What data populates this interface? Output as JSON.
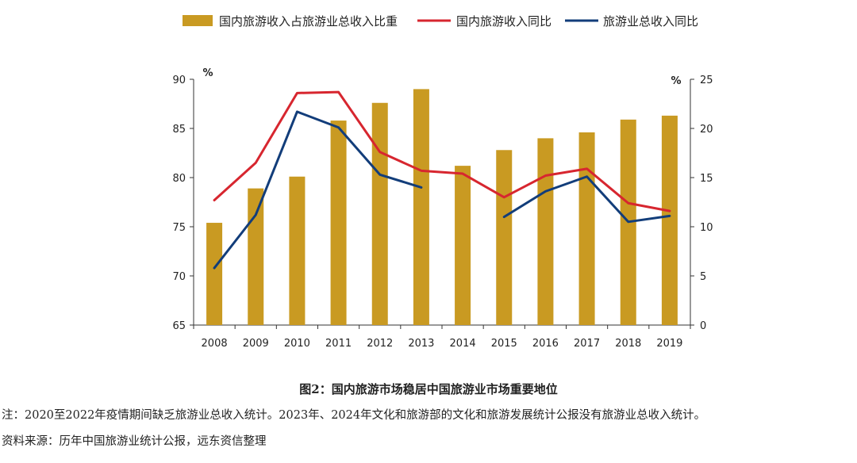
{
  "chart_data": {
    "type": "bar+line",
    "categories": [
      "2008",
      "2009",
      "2010",
      "2011",
      "2012",
      "2013",
      "2014",
      "2015",
      "2016",
      "2017",
      "2018",
      "2019"
    ],
    "series": [
      {
        "name": "国内旅游收入占旅游业总收入比重",
        "type": "bar",
        "axis": "left",
        "values": [
          75.4,
          78.9,
          80.1,
          85.8,
          87.6,
          89.0,
          81.2,
          82.8,
          84.0,
          84.6,
          85.9,
          86.3
        ]
      },
      {
        "name": "国内旅游收入同比",
        "type": "line",
        "axis": "right",
        "values": [
          12.7,
          16.5,
          23.6,
          23.7,
          17.6,
          15.7,
          15.4,
          13.0,
          15.2,
          15.9,
          12.4,
          11.6
        ]
      },
      {
        "name": "旅游业总收入同比",
        "type": "line",
        "axis": "right",
        "values": [
          5.8,
          11.2,
          21.7,
          20.1,
          15.3,
          14.0,
          null,
          11.0,
          13.6,
          15.1,
          10.5,
          11.1
        ]
      }
    ],
    "y_left": {
      "min": 65,
      "max": 90,
      "ticks": [
        65,
        70,
        75,
        80,
        85,
        90
      ],
      "unit": "%"
    },
    "y_right": {
      "min": 0,
      "max": 25,
      "ticks": [
        0,
        5,
        10,
        15,
        20,
        25
      ],
      "unit": "%"
    },
    "legend": "top",
    "colors": {
      "bar": "#C99A22",
      "line1": "#D7262F",
      "line2": "#123D7A"
    }
  },
  "caption": "图2：国内旅游市场稳居中国旅游业市场重要地位",
  "note": "注：2020至2022年疫情期间缺乏旅游业总收入统计。2023年、2024年文化和旅游部的文化和旅游发展统计公报没有旅游业总收入统计。",
  "source": "资料来源：历年中国旅游业统计公报，远东资信整理"
}
